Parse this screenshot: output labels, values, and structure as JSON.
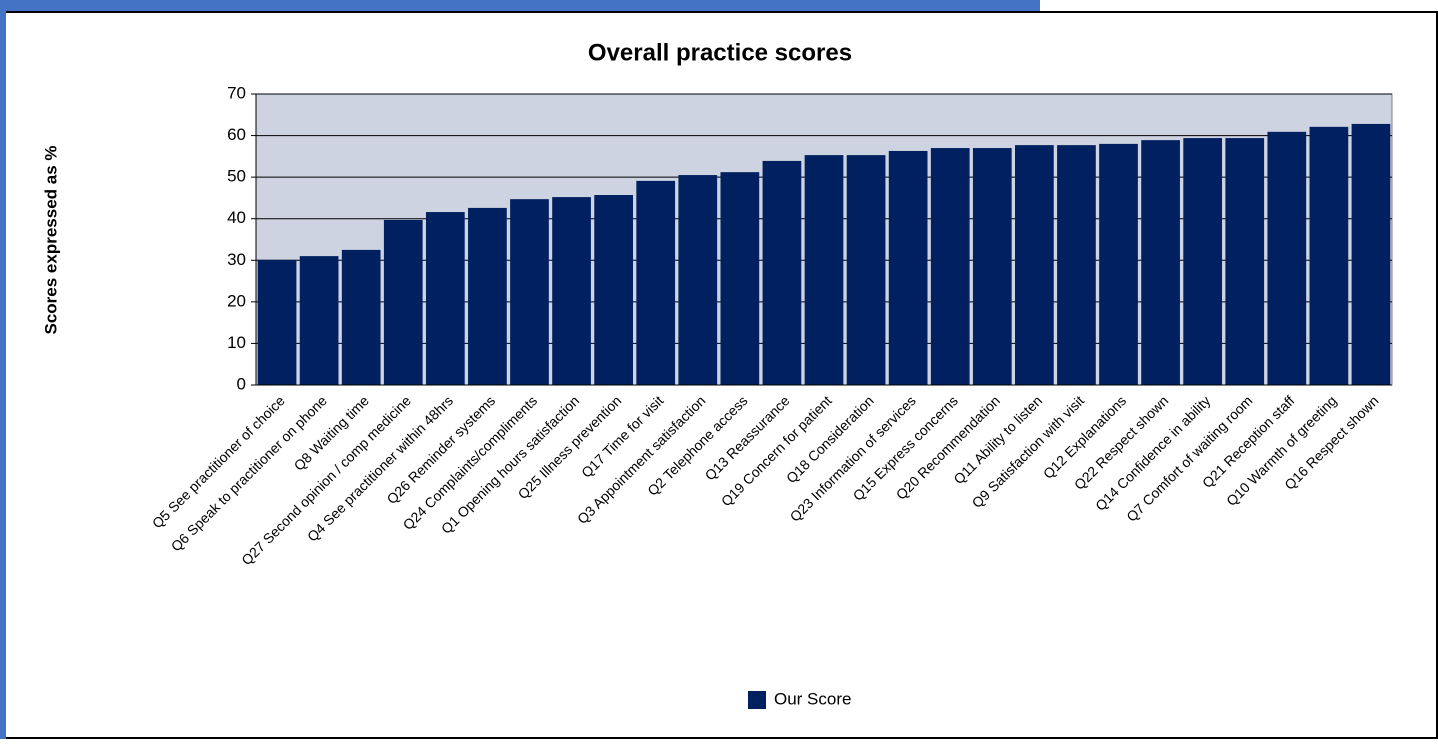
{
  "chart_data": {
    "type": "bar",
    "title": "Overall practice scores",
    "y_label": "Scores expressed as %",
    "categories": [
      "Q5 See practitioner of choice",
      "Q6 Speak to practitioner on phone",
      "Q8 Waiting time",
      "Q27 Second opinion / comp medicine",
      "Q4 See practitioner within 48hrs",
      "Q26 Reminder systems",
      "Q24 Complaints/compliments",
      "Q1 Opening hours satisfaction",
      "Q25 Illness prevention",
      "Q17 Time for visit",
      "Q3 Appointment satisfaction",
      "Q2 Telephone access",
      "Q13 Reassurance",
      "Q19 Concern for patient",
      "Q18 Consideration",
      "Q23 Information of services",
      "Q15 Express concerns",
      "Q20 Recommendation",
      "Q11 Ability to listen",
      "Q9 Satisfaction with visit",
      "Q12 Explanations",
      "Q22 Respect shown",
      "Q14 Confidence in ability",
      "Q7 Comfort of waiting room",
      "Q21 Reception staff",
      "Q10 Warmth of greeting",
      "Q16 Respect shown"
    ],
    "series": [
      {
        "name": "Our Score",
        "color": "#002060",
        "values": [
          30.1,
          31.0,
          32.5,
          39.7,
          41.6,
          42.6,
          44.7,
          45.2,
          45.7,
          49.1,
          50.5,
          51.2,
          53.9,
          55.3,
          55.3,
          56.3,
          57.0,
          57.0,
          57.7,
          57.7,
          58.0,
          58.9,
          59.4,
          59.4,
          60.9,
          62.1,
          62.8
        ]
      }
    ],
    "ylim": [
      0,
      70
    ],
    "yticks": [
      0,
      10,
      20,
      30,
      40,
      50,
      60,
      70
    ],
    "grid": true,
    "plot_background": "#cdd3e0",
    "legend": "bottom"
  }
}
